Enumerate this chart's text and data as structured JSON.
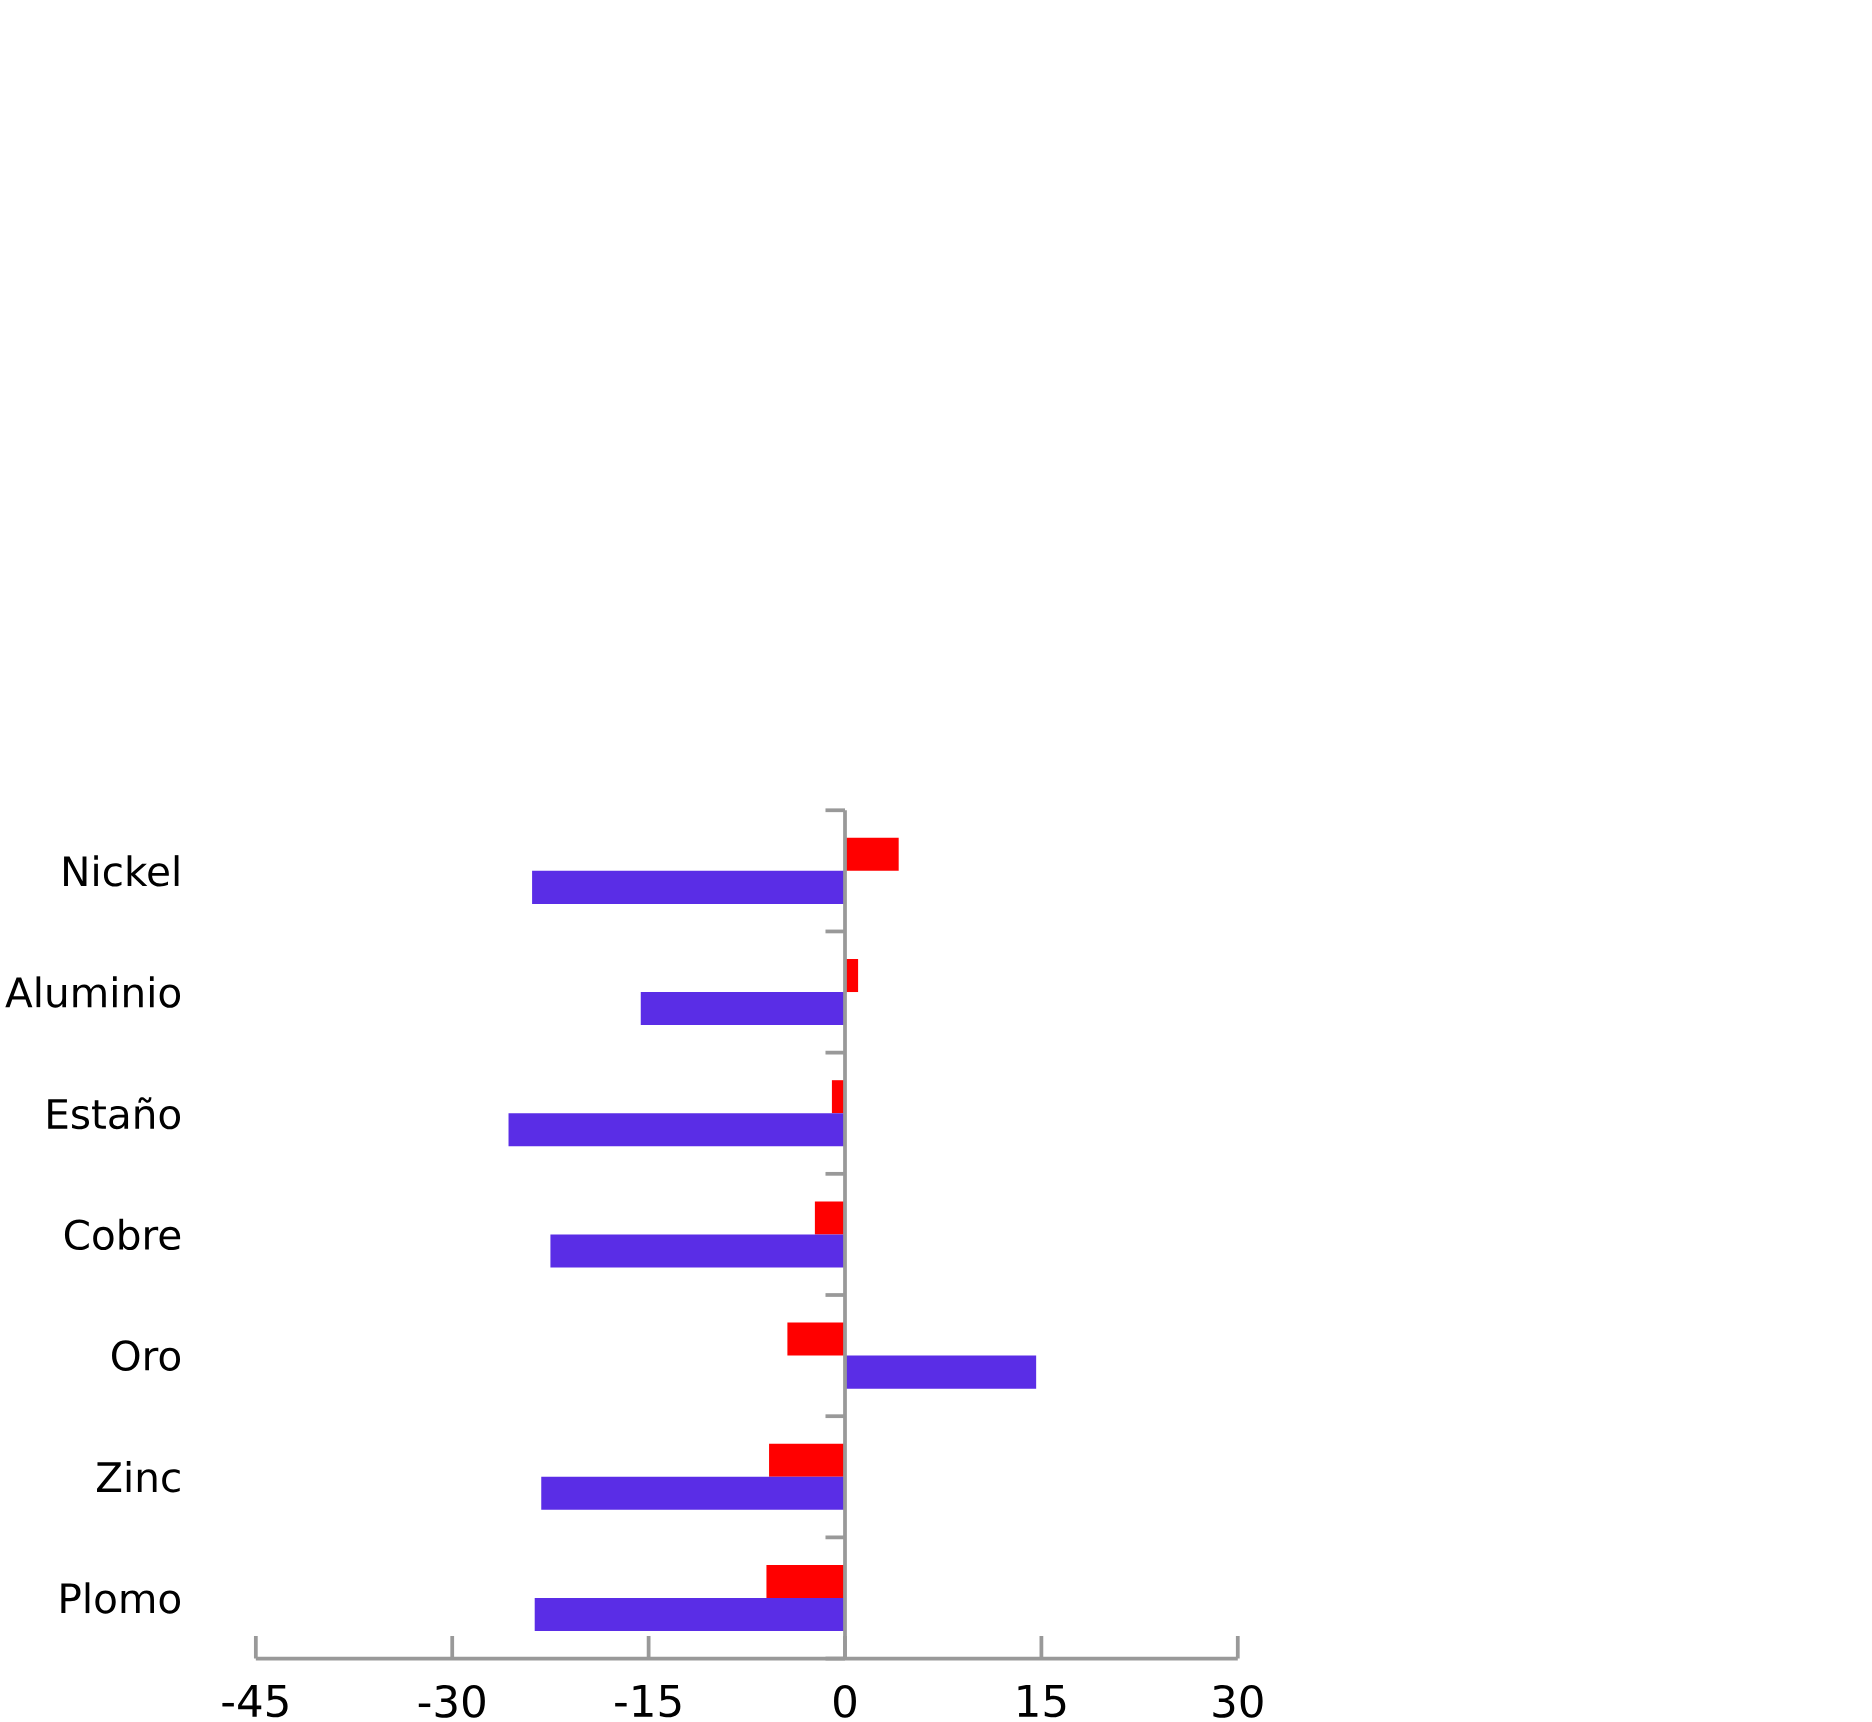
{
  "chart_data": {
    "type": "bar",
    "orientation": "horizontal",
    "categories": [
      "Nickel",
      "Aluminio",
      "Estaño",
      "Cobre",
      "Oro",
      "Zinc",
      "Plomo"
    ],
    "series": [
      {
        "color": "#ff0000",
        "values": [
          4.1,
          1.0,
          -1.0,
          -2.3,
          -4.4,
          -5.8,
          -6.0
        ]
      },
      {
        "color": "#5a2de6",
        "values": [
          -23.9,
          -15.6,
          -25.7,
          -22.5,
          14.6,
          -23.2,
          -23.7
        ]
      }
    ],
    "xlim": [
      -45,
      30
    ],
    "xticks": [
      -45,
      -30,
      -15,
      0,
      15,
      30
    ]
  }
}
